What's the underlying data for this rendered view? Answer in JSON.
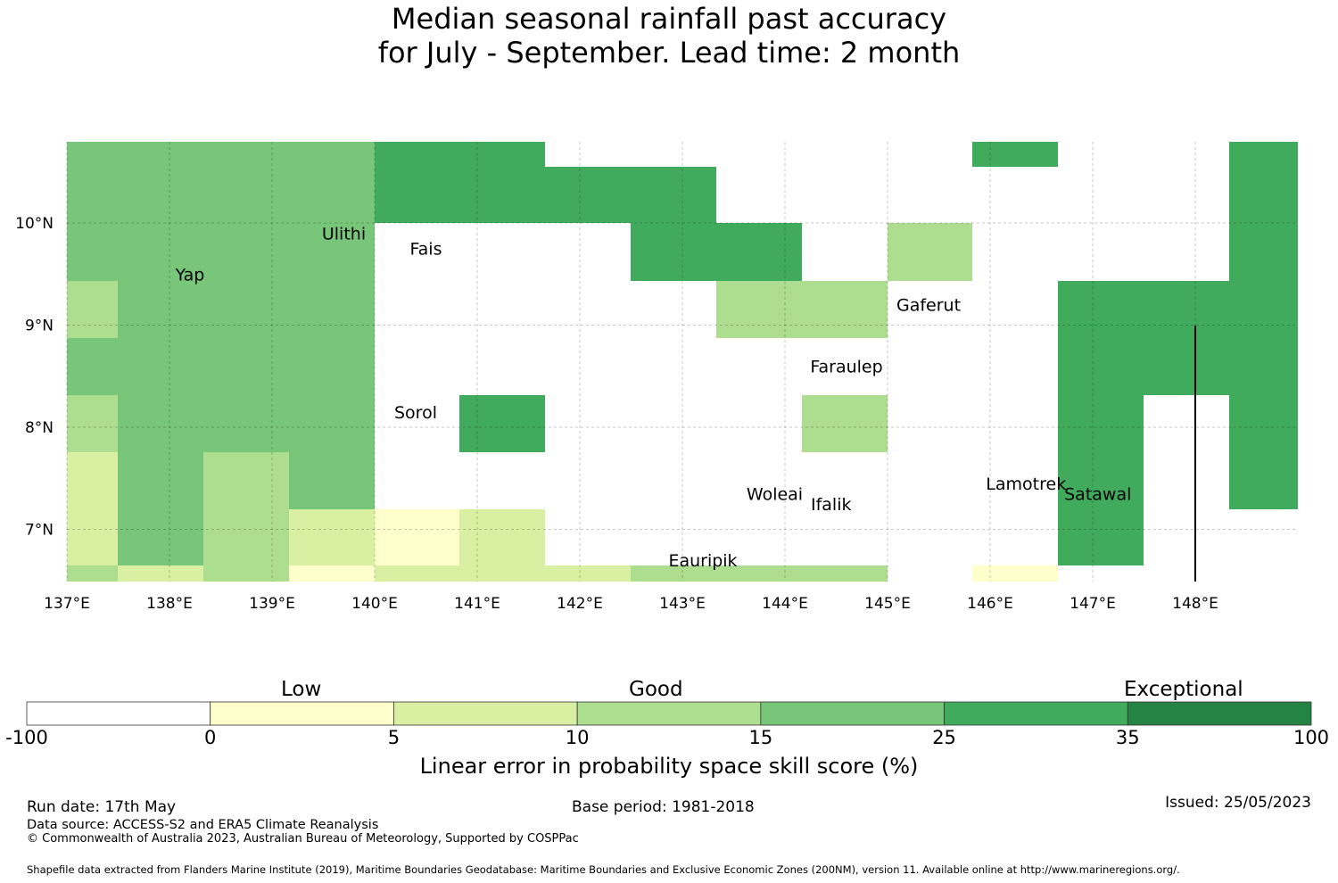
{
  "title": {
    "line1": "Median seasonal rainfall past accuracy",
    "line2": "for July - September. Lead time: 2 month"
  },
  "map": {
    "lon_range": [
      137.0,
      149.0
    ],
    "lat_range": [
      6.5,
      10.8
    ],
    "lon_ticks": [
      "137°E",
      "138°E",
      "139°E",
      "140°E",
      "141°E",
      "142°E",
      "143°E",
      "144°E",
      "145°E",
      "146°E",
      "147°E",
      "148°E"
    ],
    "lat_ticks": [
      "10°N",
      "9°N",
      "8°N",
      "7°N"
    ],
    "grid_cell_size_deg": 0.833,
    "skill_classes": [
      {
        "range": "-100 to 0",
        "color": "#ffffff"
      },
      {
        "range": "0 to 5",
        "color": "#ffffcc"
      },
      {
        "range": "5 to 10",
        "color": "#d9f0a3"
      },
      {
        "range": "10 to 15",
        "color": "#addd8e"
      },
      {
        "range": "15 to 25",
        "color": "#78c679"
      },
      {
        "range": "25 to 35",
        "color": "#41ab5d"
      },
      {
        "range": "35 to 100",
        "color": "#238443"
      }
    ],
    "places": [
      {
        "name": "Yap",
        "lon": 138.2,
        "lat": 9.5
      },
      {
        "name": "Ulithi",
        "lon": 139.7,
        "lat": 9.9
      },
      {
        "name": "Fais",
        "lon": 140.5,
        "lat": 9.75
      },
      {
        "name": "Gaferut",
        "lon": 145.4,
        "lat": 9.2
      },
      {
        "name": "Faraulep",
        "lon": 144.6,
        "lat": 8.6
      },
      {
        "name": "Sorol",
        "lon": 140.4,
        "lat": 8.15
      },
      {
        "name": "Woleai",
        "lon": 143.9,
        "lat": 7.35
      },
      {
        "name": "Ifalik",
        "lon": 144.45,
        "lat": 7.25
      },
      {
        "name": "Lamotrek",
        "lon": 146.35,
        "lat": 7.45
      },
      {
        "name": "Satawal",
        "lon": 147.05,
        "lat": 7.35
      },
      {
        "name": "Eauripik",
        "lon": 143.2,
        "lat": 6.7
      }
    ]
  },
  "colorbar": {
    "category_labels": [
      "Low",
      "Good",
      "Exceptional"
    ],
    "tick_labels": [
      "-100",
      "0",
      "5",
      "10",
      "15",
      "25",
      "35",
      "100"
    ],
    "colors": [
      "#ffffff",
      "#ffffcc",
      "#d9f0a3",
      "#addd8e",
      "#78c679",
      "#41ab5d",
      "#238443"
    ],
    "title": "Linear error in probability space skill score (%)"
  },
  "footer": {
    "run_date": "Run date: 17th May",
    "base_period": "Base period: 1981-2018",
    "issued": "Issued: 25/05/2023",
    "data_source": "Data source: ACCESS-S2 and ERA5 Climate Reanalysis",
    "copyright": "© Commonwealth of Australia 2023, Australian Bureau of Meteorology, Supported by COSPPac",
    "shapefile": "Shapefile data extracted from Flanders Marine Institute (2019), Maritime Boundaries Geodatabase: Maritime Boundaries and Exclusive Economic Zones (200NM), version 11. Available online at http://www.marineregions.org/."
  }
}
